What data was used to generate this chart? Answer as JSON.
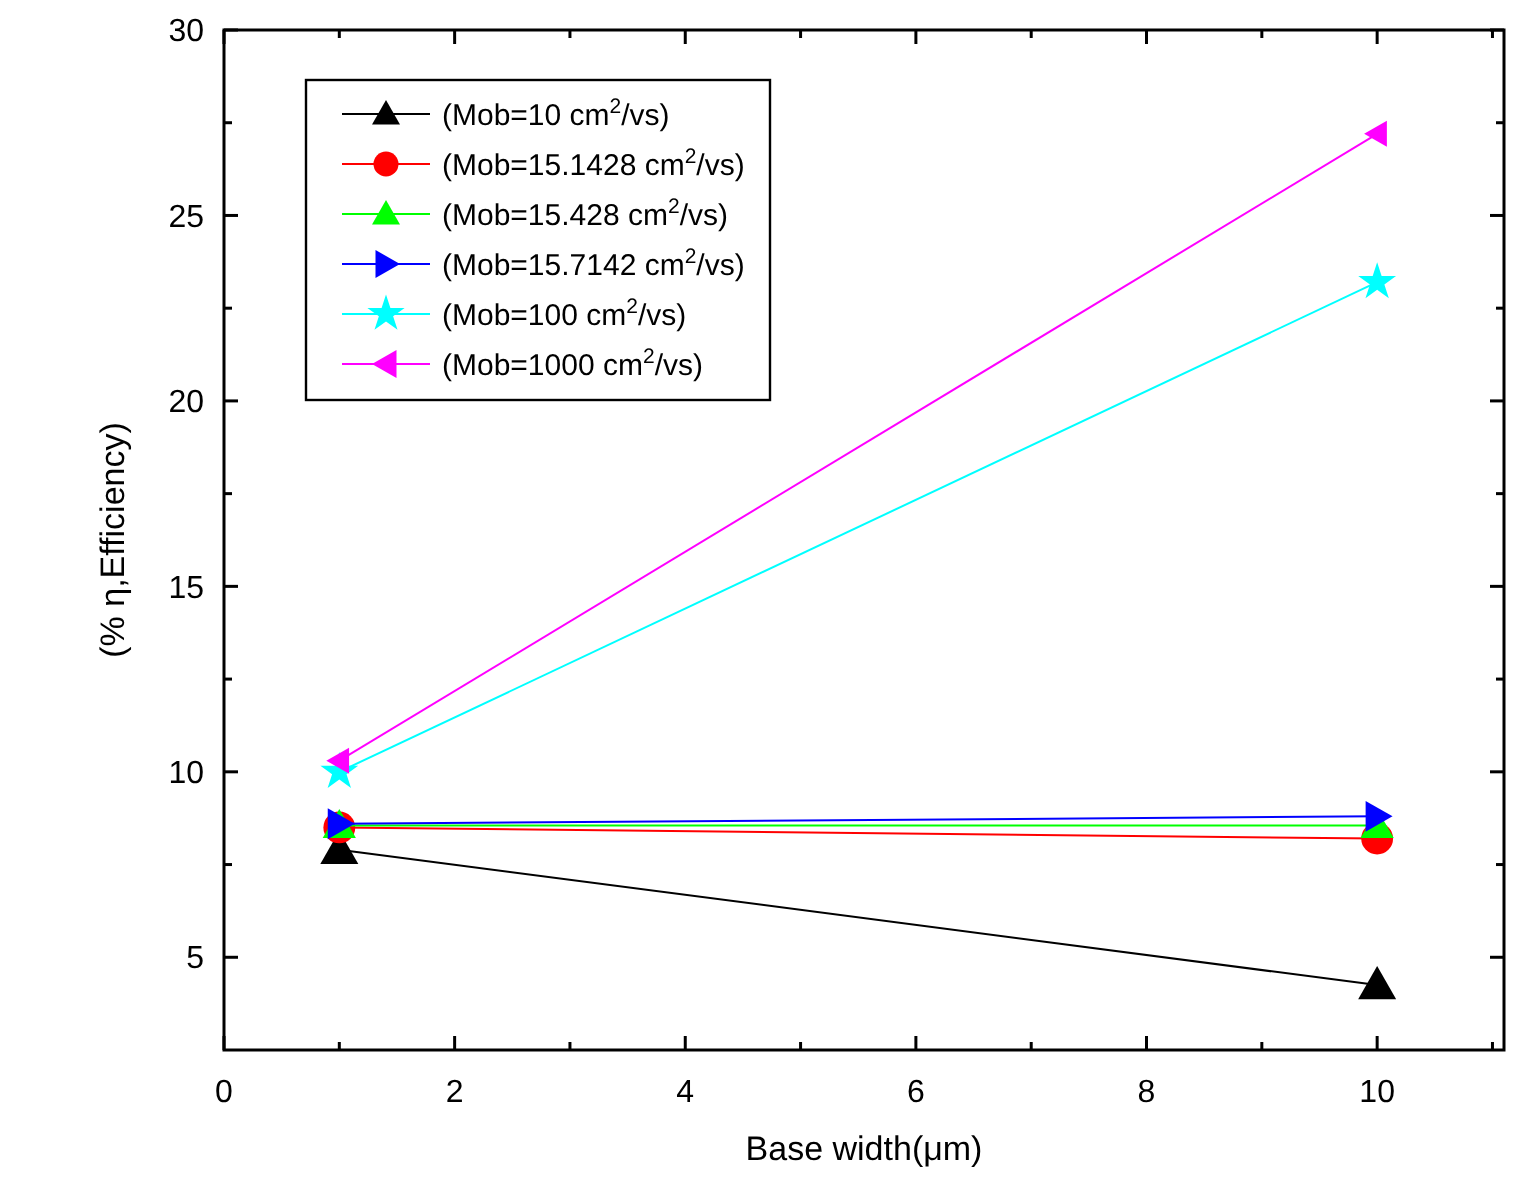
{
  "chart_data": {
    "type": "line",
    "xlabel": "Base width(μm)",
    "ylabel": "(% η,Efficiency)",
    "x": [
      1,
      10
    ],
    "xlim": [
      0,
      11.1
    ],
    "ylim": [
      2.5,
      30
    ],
    "xticks": [
      0,
      {
        "value": 1,
        "label": null
      },
      2,
      {
        "value": 3,
        "label": null
      },
      4,
      {
        "value": 5,
        "label": null
      },
      6,
      {
        "value": 7,
        "label": null
      },
      8,
      {
        "value": 9,
        "label": null
      },
      10,
      {
        "value": 11,
        "label": null
      }
    ],
    "yticks": [
      5,
      {
        "value": 7.5,
        "label": null
      },
      10,
      {
        "value": 12.5,
        "label": null
      },
      15,
      {
        "value": 17.5,
        "label": null
      },
      20,
      {
        "value": 22.5,
        "label": null
      },
      25,
      {
        "value": 27.5,
        "label": null
      },
      30
    ],
    "legend": "top left",
    "grid": false,
    "line_style": "solid",
    "series": [
      {
        "name": "(Mob=10 cm$^{2}$/vs)",
        "color": "#000000",
        "marker": "triangle",
        "values": [
          7.9,
          4.25
        ]
      },
      {
        "name": "(Mob=15.1428 cm$^{2}$/vs)",
        "color": "#ff0000",
        "marker": "circle",
        "values": [
          8.5,
          8.2
        ]
      },
      {
        "name": "(Mob=15.428 cm$^{2}$/vs)",
        "color": "#00ff00",
        "marker": "triangle",
        "values": [
          8.55,
          8.55
        ]
      },
      {
        "name": "(Mob=15.7142 cm$^{2}$/vs)",
        "color": "#0000ff",
        "marker": "triangle-right",
        "values": [
          8.6,
          8.8
        ]
      },
      {
        "name": "(Mob=100 cm$^{2}$/vs)",
        "color": "#00ffff",
        "marker": "star",
        "values": [
          10.0,
          23.2
        ]
      },
      {
        "name": "(Mob=1000 cm$^{2}$/vs)",
        "color": "#ff00ff",
        "marker": "triangle-left",
        "values": [
          10.3,
          27.2
        ]
      }
    ]
  }
}
